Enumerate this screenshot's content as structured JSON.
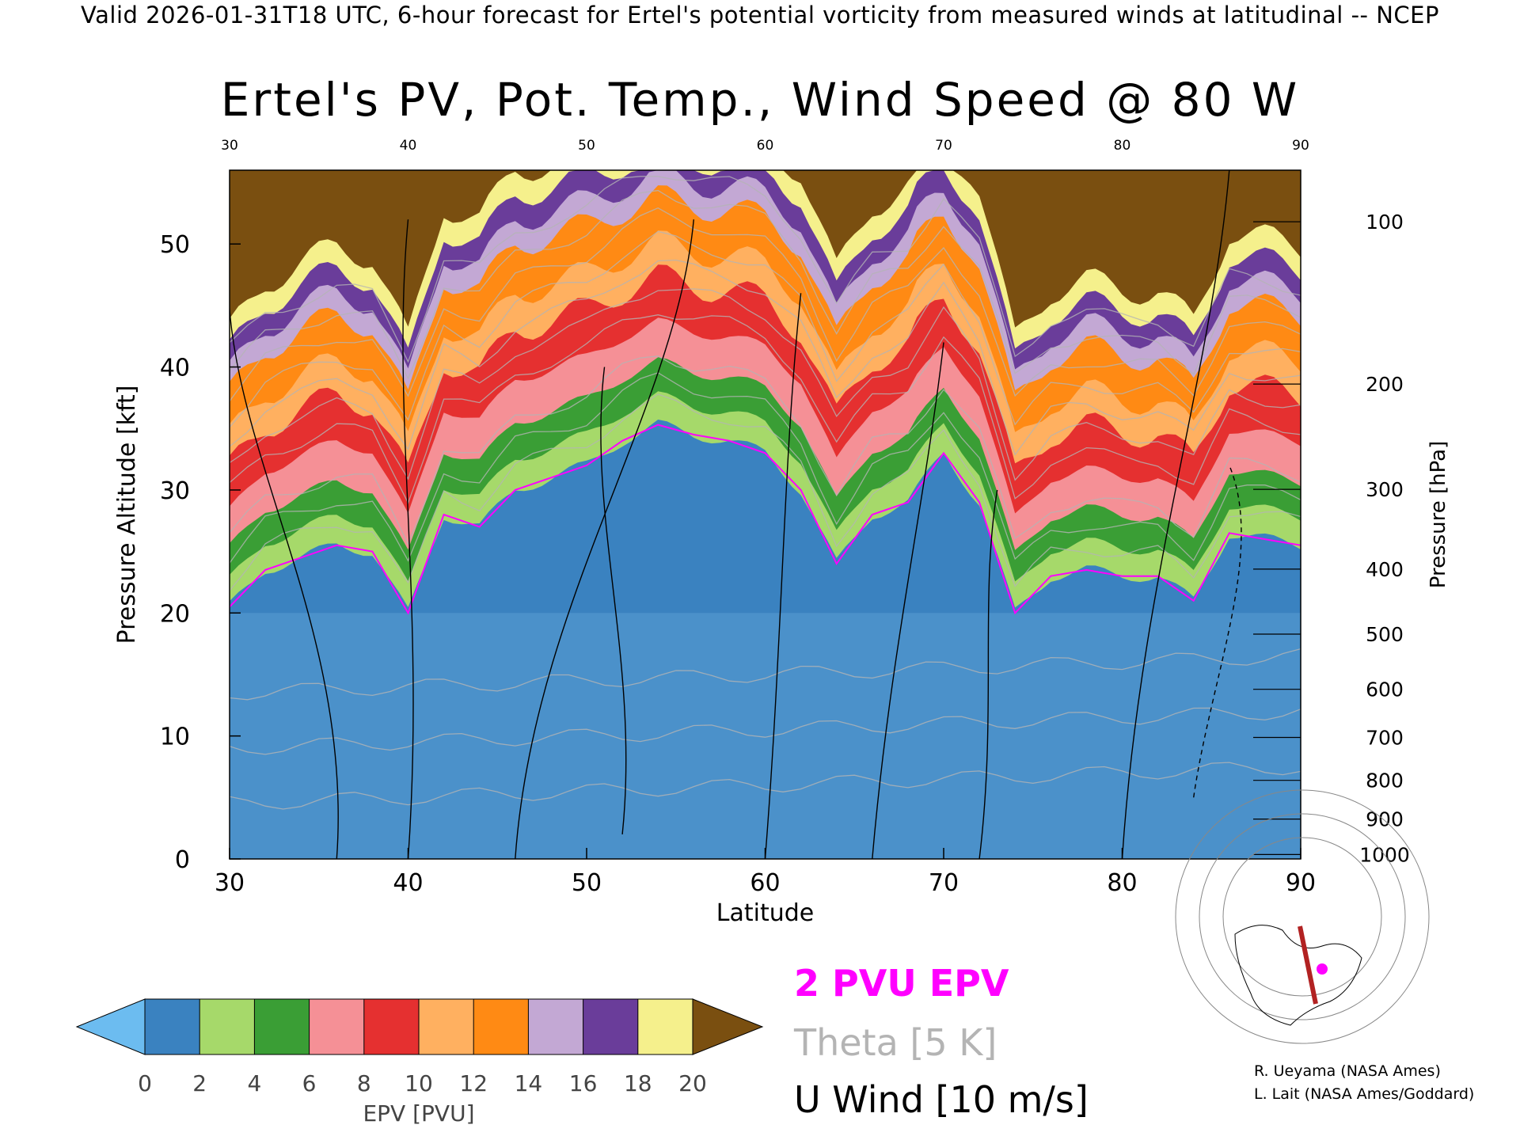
{
  "header": {
    "valid_line": "Valid 2026-01-31T18 UTC, 6-hour forecast for Ertel's potential vorticity from measured winds at latitudinal -- NCEP",
    "title": "Ertel's PV, Pot. Temp., Wind Speed @ 80 W"
  },
  "chart_data": {
    "type": "heatmap",
    "title": "Ertel's PV, Pot. Temp., Wind Speed @ 80 W",
    "xlabel": "Latitude",
    "ylabel": "Pressure Altitude [kft]",
    "y2label": "Pressure [hPa]",
    "xlim": [
      30,
      90
    ],
    "ylim": [
      0,
      56
    ],
    "x_ticks": [
      30,
      40,
      50,
      60,
      70,
      80,
      90
    ],
    "y_ticks": [
      0,
      10,
      20,
      30,
      40,
      50
    ],
    "pressure_ticks": [
      100,
      200,
      300,
      400,
      500,
      600,
      700,
      800,
      900,
      1000
    ],
    "colorbar": {
      "label": "EPV [PVU]",
      "ticks": [
        0,
        2,
        4,
        6,
        8,
        10,
        12,
        14,
        16,
        18,
        20
      ],
      "colors": [
        "#6cbcf0",
        "#3a82c0",
        "#a6d96a",
        "#3a9e35",
        "#f59096",
        "#e53030",
        "#ffb060",
        "#ff8a14",
        "#c3a8d4",
        "#6a3d9a",
        "#f5f08c",
        "#7a4f10"
      ]
    },
    "tropopause_2pvu_kft": {
      "lat": [
        30,
        32,
        34,
        36,
        38,
        40,
        42,
        44,
        46,
        48,
        50,
        52,
        54,
        56,
        58,
        60,
        62,
        64,
        66,
        68,
        70,
        72,
        74,
        76,
        78,
        80,
        82,
        84,
        86,
        88,
        90
      ],
      "kft": [
        20.5,
        23.5,
        24.5,
        25.5,
        25,
        20,
        28,
        27,
        30,
        31,
        32,
        34,
        35.3,
        34.5,
        34,
        33,
        30,
        24,
        28,
        29,
        33,
        29,
        20,
        23,
        23.5,
        23,
        23,
        21,
        26.5,
        26,
        25.5
      ]
    },
    "theta_levels_k": [
      260,
      270,
      280,
      310,
      320,
      330,
      350,
      360,
      370,
      380,
      390,
      400,
      410
    ],
    "u_wind_contours_ms": [
      0,
      10,
      30,
      50
    ],
    "legend": {
      "epv": "2 PVU EPV",
      "theta": "Theta [5 K]",
      "u_wind": "U Wind [10 m/s]"
    },
    "grid": false
  },
  "credits": {
    "line1": "R. Ueyama (NASA Ames)",
    "line2": "L. Lait (NASA Ames/Goddard)"
  }
}
